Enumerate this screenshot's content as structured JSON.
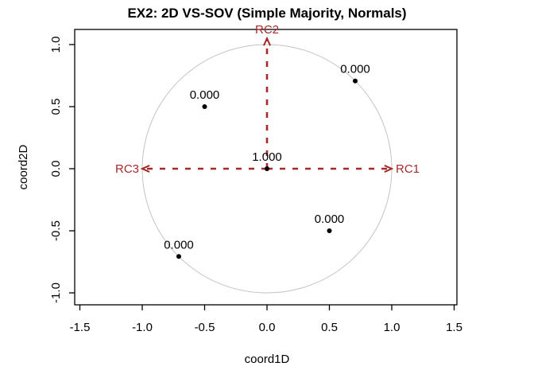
{
  "chart_data": {
    "type": "scatter",
    "title": "EX2: 2D VS-SOV (Simple Majority, Normals)",
    "xlabel": "coord1D",
    "ylabel": "coord2D",
    "xlim": [
      -1.5,
      1.5
    ],
    "ylim": [
      -1.0,
      1.0
    ],
    "grid": false,
    "x_axis": {
      "ticks": [
        {
          "value": -1.5,
          "label": "-1.5"
        },
        {
          "value": -1.0,
          "label": "-1.0"
        },
        {
          "value": -0.5,
          "label": "-0.5"
        },
        {
          "value": 0.0,
          "label": "0.0"
        },
        {
          "value": 0.5,
          "label": "0.5"
        },
        {
          "value": 1.0,
          "label": "1.0"
        },
        {
          "value": 1.5,
          "label": "1.5"
        }
      ]
    },
    "y_axis": {
      "ticks": [
        {
          "value": -1.0,
          "label": "-1.0"
        },
        {
          "value": -0.5,
          "label": "-0.5"
        },
        {
          "value": 0.0,
          "label": "0.0"
        },
        {
          "value": 0.5,
          "label": "0.5"
        },
        {
          "value": 1.0,
          "label": "1.0"
        }
      ]
    },
    "unit_circle": {
      "cx": 0,
      "cy": 0,
      "r": 1.0
    },
    "arrows": [
      {
        "name": "RC1",
        "from": {
          "x": 0,
          "y": 0
        },
        "to": {
          "x": 1.0,
          "y": 0
        },
        "label": "RC1",
        "label_side": "right"
      },
      {
        "name": "RC2",
        "from": {
          "x": 0,
          "y": 0
        },
        "to": {
          "x": 0,
          "y": 1.05
        },
        "label": "RC2",
        "label_side": "top"
      },
      {
        "name": "RC3",
        "from": {
          "x": 0,
          "y": 0
        },
        "to": {
          "x": -1.0,
          "y": 0
        },
        "label": "RC3",
        "label_side": "left"
      }
    ],
    "points": [
      {
        "x": 0.0,
        "y": 0.0,
        "label": "1.000"
      },
      {
        "x": -0.5,
        "y": 0.5,
        "label": "0.000"
      },
      {
        "x": 0.707,
        "y": 0.707,
        "label": "0.000"
      },
      {
        "x": 0.5,
        "y": -0.5,
        "label": "0.000"
      },
      {
        "x": -0.707,
        "y": -0.707,
        "label": "0.000"
      }
    ],
    "colors": {
      "arrow": "#A52A2A",
      "point": "#000000",
      "circle_outline": "#C3C3C3",
      "axis": "#000000",
      "background": "#FFFFFF"
    }
  }
}
